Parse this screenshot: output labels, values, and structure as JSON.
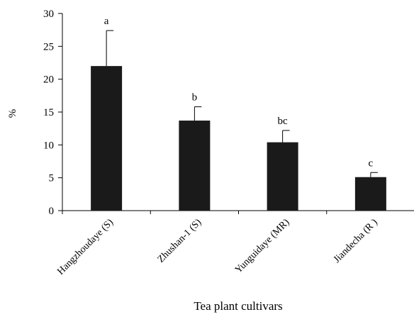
{
  "chart_data": {
    "type": "bar",
    "title": "",
    "xlabel": "Tea plant cultivars",
    "ylabel": "%",
    "ylim": [
      0,
      30
    ],
    "yticks": [
      0,
      5,
      10,
      15,
      20,
      25,
      30
    ],
    "grid": false,
    "legend": "none",
    "bar_color": "#1a1a1a",
    "categories": [
      "Hangzhoudaye (S)",
      "Zhushan-1 (S)",
      "Yunguidaye (MR)",
      "Jiandecha (R )"
    ],
    "values": [
      22.0,
      13.7,
      10.4,
      5.1
    ],
    "errors": [
      5.4,
      2.1,
      1.8,
      0.7
    ],
    "significance_labels": [
      "a",
      "b",
      "bc",
      "c"
    ]
  }
}
